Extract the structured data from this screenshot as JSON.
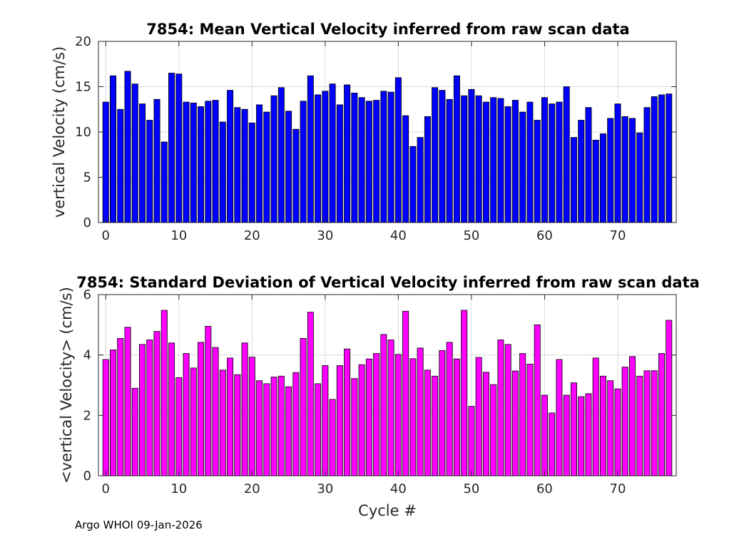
{
  "chart_data": [
    {
      "type": "bar",
      "title": "7854: Mean Vertical Velocity inferred from raw scan data",
      "xlabel": "",
      "ylabel": "vertical Velocity (cm/s)",
      "xlim": [
        -1,
        78
      ],
      "ylim": [
        0,
        20
      ],
      "xticks": [
        0,
        10,
        20,
        30,
        40,
        50,
        60,
        70
      ],
      "yticks": [
        0,
        5,
        10,
        15,
        20
      ],
      "grid": true,
      "bar_color": "#0000ff",
      "x": [
        0,
        1,
        2,
        3,
        4,
        5,
        6,
        7,
        8,
        9,
        10,
        11,
        12,
        13,
        14,
        15,
        16,
        17,
        18,
        19,
        20,
        21,
        22,
        23,
        24,
        25,
        26,
        27,
        28,
        29,
        30,
        31,
        32,
        33,
        34,
        35,
        36,
        37,
        38,
        39,
        40,
        41,
        42,
        43,
        44,
        45,
        46,
        47,
        48,
        49,
        50,
        51,
        52,
        53,
        54,
        55,
        56,
        57,
        58,
        59,
        60,
        61,
        62,
        63,
        64,
        65,
        66,
        67,
        68,
        69,
        70,
        71,
        72,
        73,
        74,
        75,
        76,
        77
      ],
      "values": [
        13.3,
        16.2,
        12.5,
        16.7,
        15.3,
        13.1,
        11.3,
        13.6,
        8.9,
        16.5,
        16.4,
        13.3,
        13.2,
        12.8,
        13.4,
        13.5,
        11.1,
        14.6,
        12.7,
        12.5,
        11.0,
        13.0,
        12.2,
        14.0,
        14.9,
        12.3,
        10.3,
        13.4,
        16.2,
        14.1,
        14.5,
        15.3,
        13.0,
        15.2,
        14.3,
        13.8,
        13.4,
        13.5,
        14.5,
        14.4,
        16.0,
        11.8,
        8.4,
        9.4,
        11.7,
        14.9,
        14.6,
        13.6,
        16.2,
        14.0,
        14.7,
        14.0,
        13.3,
        13.8,
        13.7,
        12.8,
        13.5,
        12.2,
        13.3,
        11.3,
        13.8,
        13.1,
        13.3,
        15.0,
        9.4,
        11.3,
        12.7,
        9.1,
        9.8,
        11.5,
        13.1,
        11.7,
        11.5,
        9.9,
        12.7,
        13.9,
        14.1,
        14.2
      ]
    },
    {
      "type": "bar",
      "title": "7854: Standard Deviation of Vertical Velocity inferred from raw scan data",
      "xlabel": "Cycle #",
      "ylabel": "<vertical Velocity> (cm/s)",
      "xlim": [
        -1,
        78
      ],
      "ylim": [
        0,
        6
      ],
      "xticks": [
        0,
        10,
        20,
        30,
        40,
        50,
        60,
        70
      ],
      "yticks": [
        0,
        2,
        4,
        6
      ],
      "grid": true,
      "bar_color": "#ff00ff",
      "x": [
        0,
        1,
        2,
        3,
        4,
        5,
        6,
        7,
        8,
        9,
        10,
        11,
        12,
        13,
        14,
        15,
        16,
        17,
        18,
        19,
        20,
        21,
        22,
        23,
        24,
        25,
        26,
        27,
        28,
        29,
        30,
        31,
        32,
        33,
        34,
        35,
        36,
        37,
        38,
        39,
        40,
        41,
        42,
        43,
        44,
        45,
        46,
        47,
        48,
        49,
        50,
        51,
        52,
        53,
        54,
        55,
        56,
        57,
        58,
        59,
        60,
        61,
        62,
        63,
        64,
        65,
        66,
        67,
        68,
        69,
        70,
        71,
        72,
        73,
        74,
        75,
        76,
        77
      ],
      "values": [
        3.85,
        4.17,
        4.55,
        4.92,
        2.9,
        4.35,
        4.5,
        4.78,
        5.48,
        4.4,
        3.25,
        4.05,
        3.57,
        4.42,
        4.95,
        4.25,
        3.5,
        3.9,
        3.35,
        4.4,
        3.93,
        3.15,
        3.05,
        3.27,
        3.3,
        2.95,
        3.42,
        4.55,
        5.42,
        3.05,
        3.65,
        2.53,
        3.65,
        4.2,
        3.22,
        3.68,
        3.87,
        4.05,
        4.68,
        4.5,
        4.02,
        5.45,
        3.88,
        4.23,
        3.5,
        3.3,
        4.15,
        4.42,
        3.87,
        5.48,
        2.3,
        3.92,
        3.43,
        3.02,
        4.5,
        4.35,
        3.47,
        4.05,
        3.7,
        5.0,
        2.67,
        2.08,
        3.85,
        2.67,
        3.08,
        2.62,
        2.72,
        3.9,
        3.3,
        3.15,
        2.88,
        3.6,
        3.95,
        3.3,
        3.48,
        3.48,
        4.05,
        5.15
      ]
    }
  ],
  "footer_text": "Argo WHOI 09-Jan-2026"
}
